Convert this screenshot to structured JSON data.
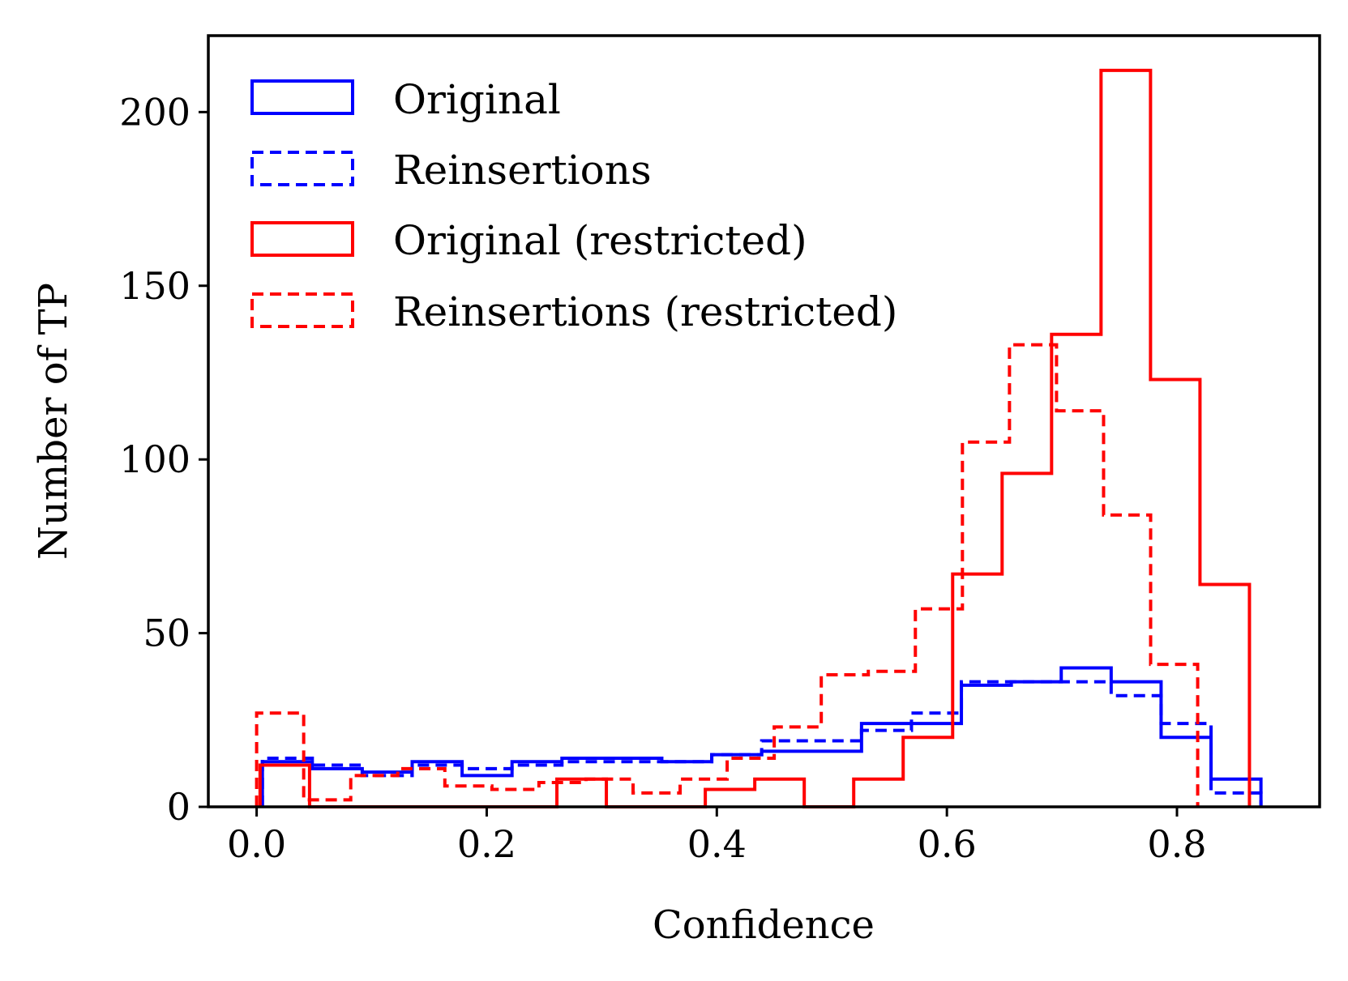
{
  "chart_data": {
    "type": "histogram-step",
    "title": "",
    "xlabel": "Confidence",
    "ylabel": "Number of TP",
    "xlim": [
      -0.042,
      0.924
    ],
    "ylim": [
      0,
      222
    ],
    "xticks": [
      0.0,
      0.2,
      0.4,
      0.6,
      0.8
    ],
    "xtick_labels": [
      "0.0",
      "0.2",
      "0.4",
      "0.6",
      "0.8"
    ],
    "yticks": [
      0,
      50,
      100,
      150,
      200
    ],
    "ytick_labels": [
      "0",
      "50",
      "100",
      "150",
      "200"
    ],
    "grid": false,
    "legend_position": "top-left",
    "series": [
      {
        "name": "Original",
        "color": "#0000ff",
        "dash": "solid",
        "edges": [
          0.005,
          0.0484,
          0.0918,
          0.1352,
          0.1786,
          0.222,
          0.2654,
          0.3088,
          0.3522,
          0.3956,
          0.439,
          0.4824,
          0.5258,
          0.5692,
          0.6126,
          0.656,
          0.6994,
          0.7428,
          0.7862,
          0.8296,
          0.873
        ],
        "counts": [
          13,
          11,
          10,
          13,
          9,
          13,
          14,
          14,
          13,
          15,
          16,
          16,
          24,
          24,
          35,
          36,
          40,
          36,
          20,
          8
        ]
      },
      {
        "name": "Reinsertions",
        "color": "#0000ff",
        "dash": "dashed",
        "edges": [
          0.005,
          0.0484,
          0.0918,
          0.1352,
          0.1786,
          0.222,
          0.2654,
          0.3088,
          0.3522,
          0.3956,
          0.439,
          0.4824,
          0.5258,
          0.5692,
          0.6126,
          0.656,
          0.6994,
          0.7428,
          0.7862,
          0.8296,
          0.873
        ],
        "counts": [
          14,
          12,
          9,
          12,
          11,
          12,
          13,
          13,
          13,
          15,
          19,
          19,
          22,
          27,
          36,
          36,
          36,
          32,
          24,
          4
        ]
      },
      {
        "name": "Original (restricted)",
        "color": "#ff0000",
        "dash": "solid",
        "edges": [
          0.003,
          0.046,
          0.089,
          0.132,
          0.175,
          0.218,
          0.261,
          0.304,
          0.347,
          0.39,
          0.433,
          0.476,
          0.519,
          0.562,
          0.605,
          0.648,
          0.691,
          0.734,
          0.777,
          0.82,
          0.863
        ],
        "counts": [
          12,
          0,
          0,
          0,
          0,
          0,
          8,
          0,
          0,
          5,
          8,
          0,
          8,
          20,
          67,
          96,
          136,
          212,
          123,
          64
        ]
      },
      {
        "name": "Reinsertions (restricted)",
        "color": "#ff0000",
        "dash": "dashed",
        "edges": [
          0.0,
          0.0409,
          0.0818,
          0.1227,
          0.1636,
          0.2045,
          0.2454,
          0.2863,
          0.3272,
          0.3681,
          0.409,
          0.4499,
          0.4908,
          0.5317,
          0.5726,
          0.6135,
          0.6544,
          0.6953,
          0.7362,
          0.7771,
          0.818
        ],
        "counts": [
          27,
          2,
          9,
          11,
          6,
          5,
          7,
          8,
          4,
          8,
          14,
          23,
          38,
          39,
          57,
          105,
          133,
          114,
          84,
          41
        ]
      }
    ]
  }
}
